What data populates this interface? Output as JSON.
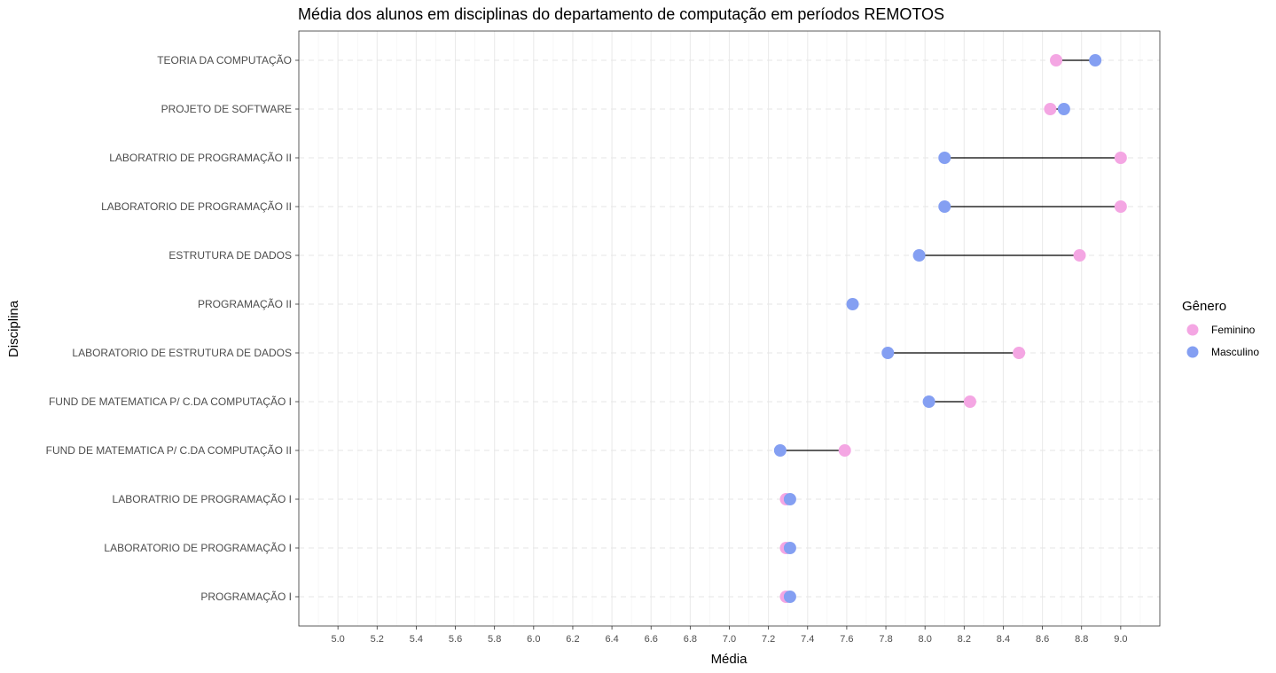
{
  "chart_data": {
    "type": "dumbbell",
    "title": "Média dos alunos em disciplinas do departamento de computação em períodos REMOTOS",
    "xlabel": "Média",
    "ylabel": "Disciplina",
    "xlim": [
      4.8,
      9.2
    ],
    "x_ticks": [
      "5.0",
      "5.2",
      "5.4",
      "5.6",
      "5.8",
      "6.0",
      "6.2",
      "6.4",
      "6.6",
      "6.8",
      "7.0",
      "7.2",
      "7.4",
      "7.6",
      "7.8",
      "8.0",
      "8.2",
      "8.4",
      "8.6",
      "8.8",
      "9.0"
    ],
    "grid": true,
    "legend": {
      "title": "Gênero",
      "position": "right",
      "entries": [
        {
          "name": "Feminino",
          "color": "#F4A6E3"
        },
        {
          "name": "Masculino",
          "color": "#849FF2"
        }
      ]
    },
    "categories": [
      "TEORIA DA COMPUTAÇÃO",
      "PROJETO DE SOFTWARE",
      "LABORATRIO DE PROGRAMAÇÃO II",
      "LABORATORIO DE PROGRAMAÇÃO II",
      "ESTRUTURA DE DADOS",
      "PROGRAMAÇÃO II",
      "LABORATORIO DE ESTRUTURA DE DADOS",
      "FUND DE MATEMATICA P/ C.DA COMPUTAÇÃO I",
      "FUND DE MATEMATICA P/ C.DA COMPUTAÇÃO II",
      "LABORATRIO DE PROGRAMAÇÃO I",
      "LABORATORIO DE PROGRAMAÇÃO I",
      "PROGRAMAÇÃO I"
    ],
    "series": [
      {
        "name": "Feminino",
        "values": [
          8.67,
          8.64,
          9.0,
          9.0,
          8.79,
          null,
          8.48,
          8.23,
          7.59,
          7.29,
          7.29,
          7.29
        ]
      },
      {
        "name": "Masculino",
        "values": [
          8.87,
          8.71,
          8.1,
          8.1,
          7.97,
          7.63,
          7.81,
          8.02,
          7.26,
          7.31,
          7.31,
          7.31
        ]
      }
    ]
  }
}
